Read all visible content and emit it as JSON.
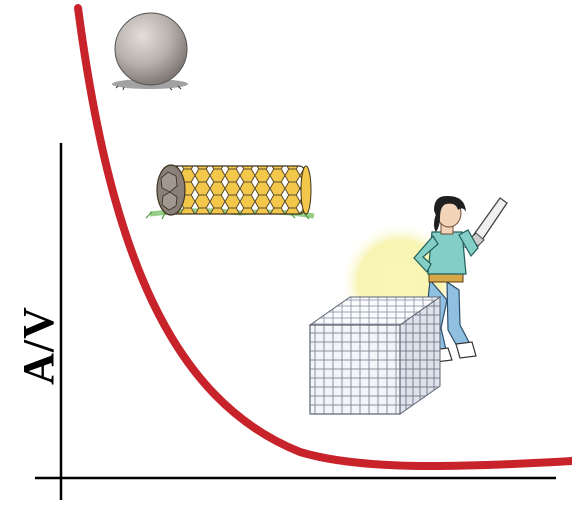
{
  "diagram": {
    "y_axis_label": "A/V",
    "curve_color": "#c8232b",
    "axis_color": "#000000",
    "illustrations": [
      {
        "name": "sphere",
        "icon": "sphere-icon"
      },
      {
        "name": "nanotube",
        "icon": "nanotube-icon"
      },
      {
        "name": "person-with-saw-and-cube",
        "icon": "person-with-cube-icon"
      }
    ]
  }
}
